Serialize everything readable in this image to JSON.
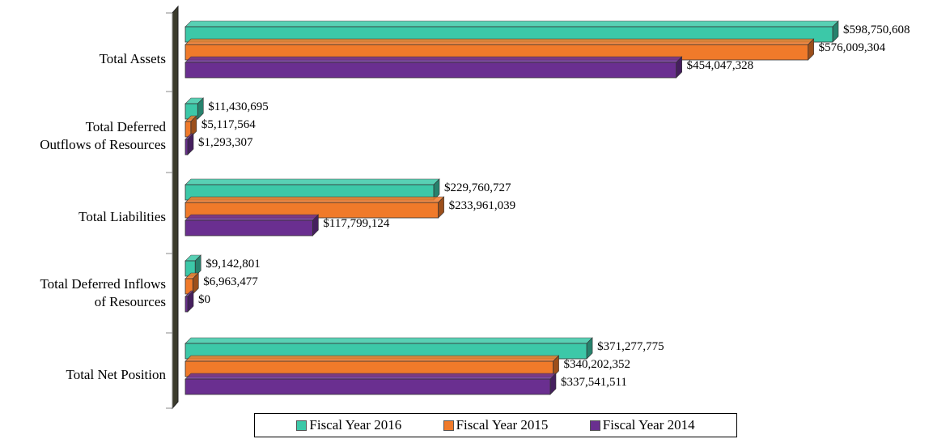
{
  "chart_data": {
    "type": "bar",
    "orientation": "horizontal",
    "categories": [
      [
        "Total Assets"
      ],
      [
        "Total Deferred",
        "Outflows of Resources"
      ],
      [
        "Total Liabilities"
      ],
      [
        "Total Deferred Inflows",
        "of Resources"
      ],
      [
        "Total Net Position"
      ]
    ],
    "series": [
      {
        "name": "Fiscal Year 2016",
        "color": "#3cc8a8",
        "values": [
          598750608,
          11430695,
          229760727,
          9142801,
          371277775
        ],
        "labels": [
          "$598,750,608",
          "$11,430,695",
          "$229,760,727",
          "$9,142,801",
          "$371,277,775"
        ]
      },
      {
        "name": "Fiscal Year 2015",
        "color": "#f07a2a",
        "values": [
          576009304,
          5117564,
          233961039,
          6963477,
          340202352
        ],
        "labels": [
          "$576,009,304",
          "$5,117,564",
          "$233,961,039",
          "$6,963,477",
          "$340,202,352"
        ]
      },
      {
        "name": "Fiscal Year 2014",
        "color": "#6a2f90",
        "values": [
          454047328,
          1293307,
          117799124,
          0,
          337541511
        ],
        "labels": [
          "$454,047,328",
          "$1,293,307",
          "$117,799,124",
          "$0",
          "$337,541,511"
        ]
      }
    ],
    "xlim": [
      0,
      598750608
    ],
    "legend_position": "bottom",
    "grid": false,
    "style": "3d"
  }
}
